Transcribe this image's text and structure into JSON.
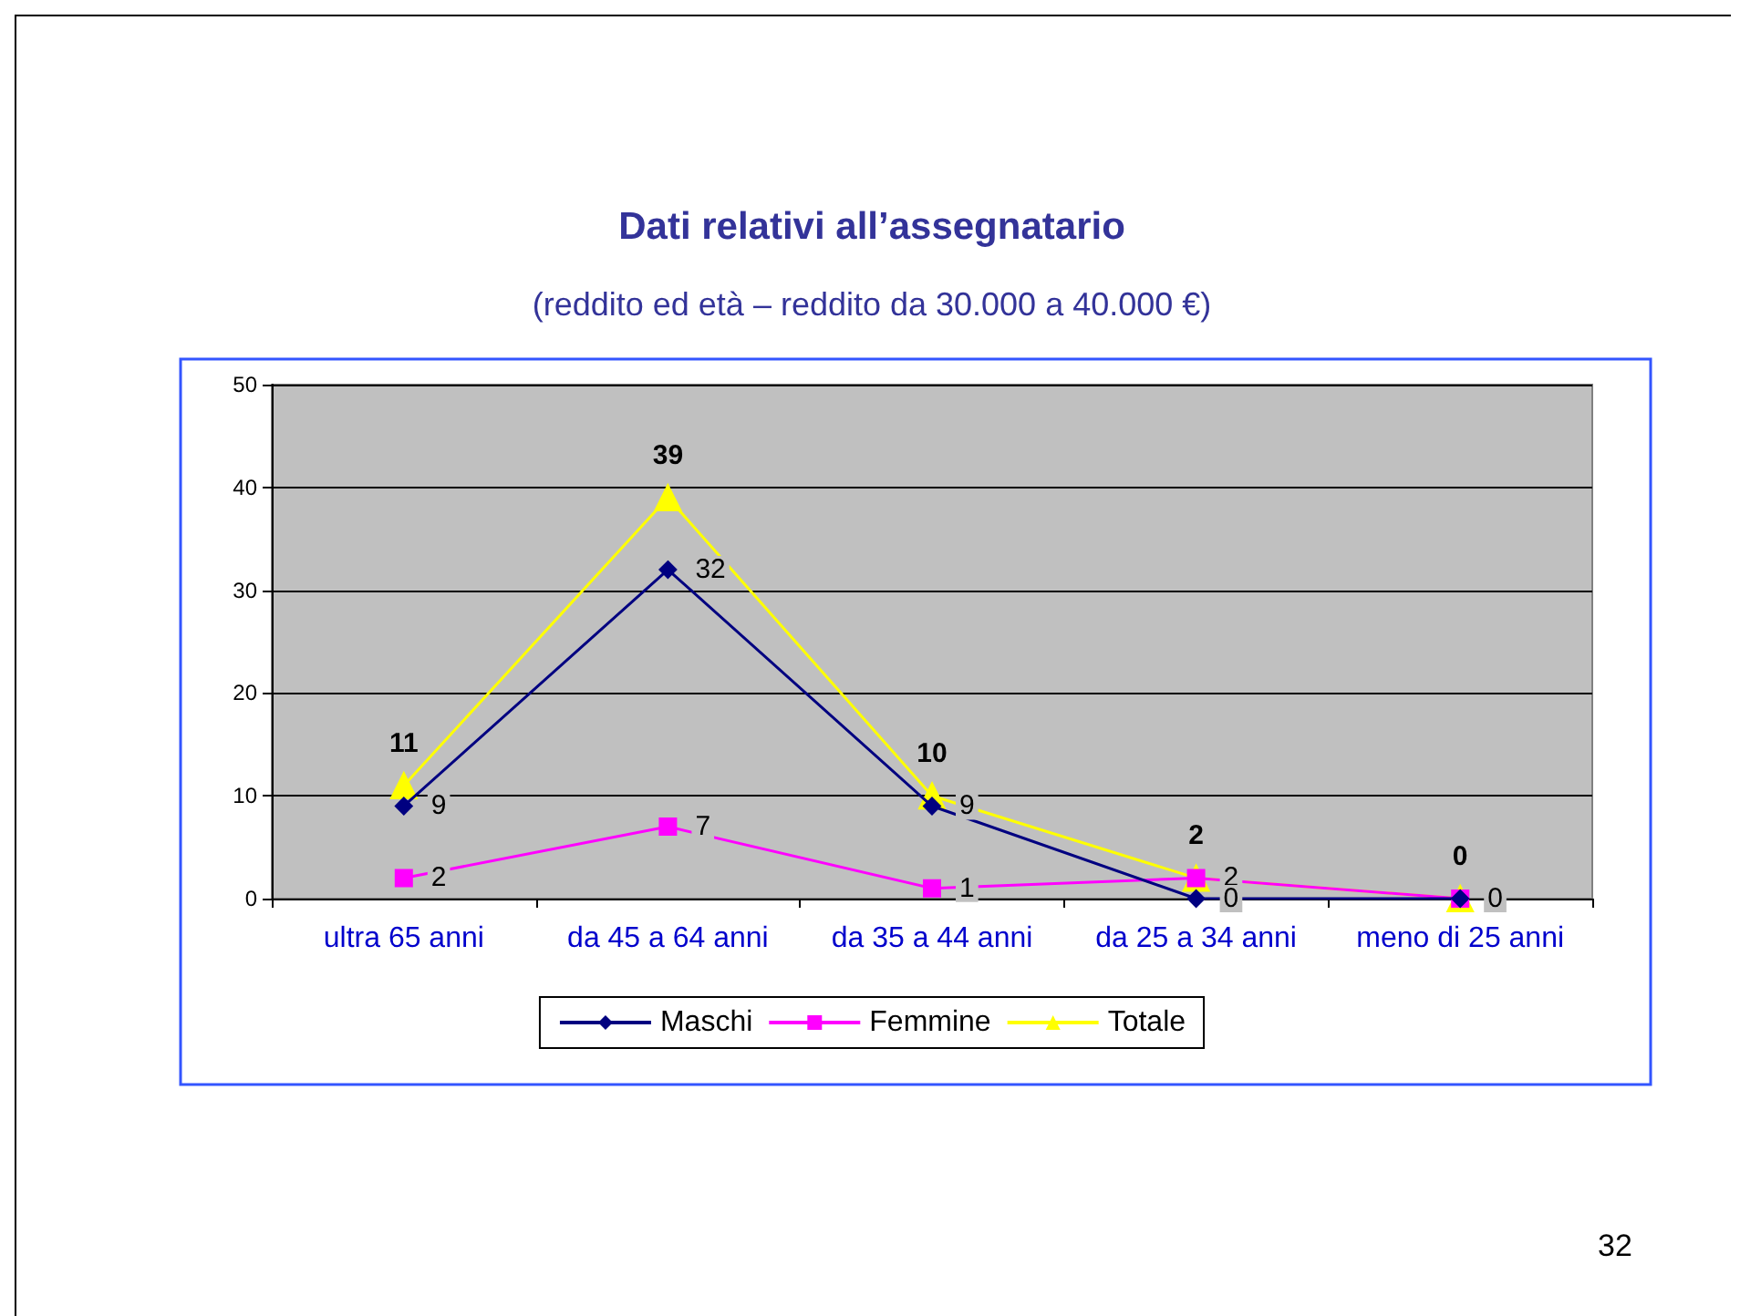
{
  "chart_data": {
    "type": "line",
    "title": "Dati relativi all’assegnatario",
    "subtitle": "(reddito ed età – reddito da 30.000 a 40.000 €)",
    "categories": [
      "ultra 65 anni",
      "da 45 a 64 anni",
      "da 35 a 44 anni",
      "da 25 a 34 anni",
      "meno di 25 anni"
    ],
    "series": [
      {
        "name": "Maschi",
        "color": "#000080",
        "marker": "diamond",
        "values": [
          9,
          32,
          9,
          0,
          0
        ],
        "value_labels": [
          "9",
          "32",
          "9",
          "0",
          "0"
        ]
      },
      {
        "name": "Femmine",
        "color": "#ff00ff",
        "marker": "square",
        "values": [
          2,
          7,
          1,
          2,
          0
        ],
        "value_labels": [
          "2",
          "7",
          "1",
          "2",
          null
        ]
      },
      {
        "name": "Totale",
        "color": "#ffff00",
        "marker": "triangle",
        "values": [
          11,
          39,
          10,
          2,
          0
        ],
        "value_labels": [
          "11",
          "39",
          "10",
          "2",
          "0"
        ]
      }
    ],
    "ylim": [
      0,
      50
    ],
    "yticks": [
      0,
      10,
      20,
      30,
      40,
      50
    ],
    "grid": "y",
    "legend": "bottom",
    "annotations": [
      "32"
    ]
  }
}
